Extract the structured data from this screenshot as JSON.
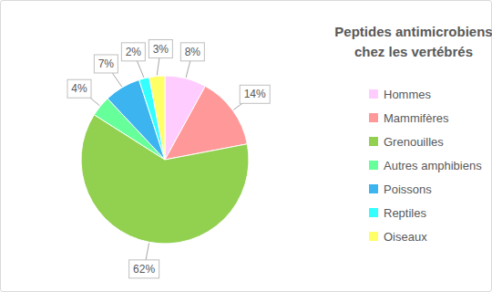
{
  "chart_data": {
    "type": "pie",
    "title": "Peptides antimicrobiens chez les vertébrés",
    "categories": [
      "Hommes",
      "Mammifères",
      "Grenouilles",
      "Autres amphibiens",
      "Poissons",
      "Reptiles",
      "Oiseaux"
    ],
    "values": [
      8,
      14,
      62,
      4,
      7,
      2,
      3
    ],
    "value_labels": [
      "8%",
      "14%",
      "62%",
      "4%",
      "7%",
      "2%",
      "3%"
    ],
    "colors": [
      "#ffccff",
      "#ff9999",
      "#92d050",
      "#66ff99",
      "#3cb4f0",
      "#33ffff",
      "#ffff66"
    ],
    "data_labels": true,
    "legend": "right"
  }
}
